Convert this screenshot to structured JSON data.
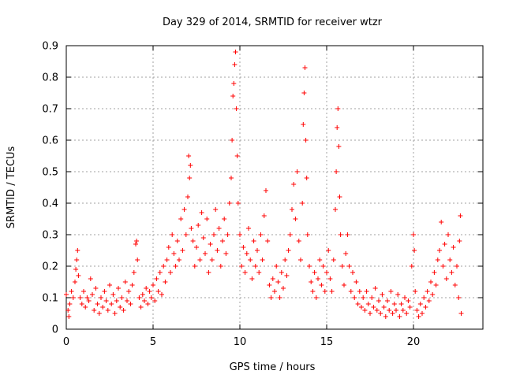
{
  "chart_data": {
    "type": "scatter",
    "title": "Day 329 of 2014, SRMTID for receiver wtzr",
    "xlabel": "GPS time / hours",
    "ylabel": "SRMTID / TECUs",
    "xlim": [
      0,
      24
    ],
    "ylim": [
      0,
      0.9
    ],
    "xticks": [
      "0",
      "5",
      "10",
      "15",
      "20"
    ],
    "yticks": [
      "0",
      "0.1",
      "0.2",
      "0.3",
      "0.4",
      "0.5",
      "0.6",
      "0.7",
      "0.8",
      "0.9"
    ],
    "grid": true,
    "marker": "+",
    "series": [
      {
        "name": "SRMTID",
        "color": "#ff0000",
        "points": [
          [
            0.0,
            0.11
          ],
          [
            0.1,
            0.06
          ],
          [
            0.15,
            0.04
          ],
          [
            0.2,
            0.08
          ],
          [
            0.3,
            0.12
          ],
          [
            0.4,
            0.1
          ],
          [
            0.5,
            0.15
          ],
          [
            0.55,
            0.19
          ],
          [
            0.6,
            0.22
          ],
          [
            0.65,
            0.25
          ],
          [
            0.7,
            0.17
          ],
          [
            0.8,
            0.1
          ],
          [
            0.9,
            0.08
          ],
          [
            1.0,
            0.12
          ],
          [
            1.1,
            0.07
          ],
          [
            1.2,
            0.1
          ],
          [
            1.3,
            0.09
          ],
          [
            1.4,
            0.16
          ],
          [
            1.5,
            0.11
          ],
          [
            1.6,
            0.06
          ],
          [
            1.7,
            0.13
          ],
          [
            1.8,
            0.08
          ],
          [
            1.9,
            0.05
          ],
          [
            2.0,
            0.1
          ],
          [
            2.1,
            0.07
          ],
          [
            2.2,
            0.12
          ],
          [
            2.3,
            0.09
          ],
          [
            2.4,
            0.06
          ],
          [
            2.5,
            0.14
          ],
          [
            2.6,
            0.08
          ],
          [
            2.7,
            0.11
          ],
          [
            2.8,
            0.05
          ],
          [
            2.9,
            0.09
          ],
          [
            3.0,
            0.13
          ],
          [
            3.1,
            0.07
          ],
          [
            3.2,
            0.1
          ],
          [
            3.3,
            0.06
          ],
          [
            3.4,
            0.15
          ],
          [
            3.5,
            0.09
          ],
          [
            3.6,
            0.12
          ],
          [
            3.7,
            0.08
          ],
          [
            3.8,
            0.14
          ],
          [
            3.9,
            0.18
          ],
          [
            4.0,
            0.27
          ],
          [
            4.05,
            0.28
          ],
          [
            4.1,
            0.22
          ],
          [
            4.2,
            0.1
          ],
          [
            4.3,
            0.07
          ],
          [
            4.4,
            0.11
          ],
          [
            4.5,
            0.09
          ],
          [
            4.6,
            0.13
          ],
          [
            4.7,
            0.08
          ],
          [
            4.8,
            0.12
          ],
          [
            4.9,
            0.1
          ],
          [
            5.0,
            0.14
          ],
          [
            5.1,
            0.09
          ],
          [
            5.2,
            0.16
          ],
          [
            5.3,
            0.12
          ],
          [
            5.4,
            0.18
          ],
          [
            5.5,
            0.11
          ],
          [
            5.6,
            0.2
          ],
          [
            5.7,
            0.15
          ],
          [
            5.8,
            0.22
          ],
          [
            5.9,
            0.26
          ],
          [
            6.0,
            0.18
          ],
          [
            6.1,
            0.3
          ],
          [
            6.2,
            0.24
          ],
          [
            6.3,
            0.2
          ],
          [
            6.4,
            0.28
          ],
          [
            6.5,
            0.22
          ],
          [
            6.6,
            0.35
          ],
          [
            6.7,
            0.25
          ],
          [
            6.8,
            0.38
          ],
          [
            6.9,
            0.3
          ],
          [
            7.0,
            0.42
          ],
          [
            7.05,
            0.55
          ],
          [
            7.1,
            0.48
          ],
          [
            7.15,
            0.52
          ],
          [
            7.2,
            0.32
          ],
          [
            7.3,
            0.28
          ],
          [
            7.4,
            0.2
          ],
          [
            7.5,
            0.26
          ],
          [
            7.6,
            0.33
          ],
          [
            7.7,
            0.22
          ],
          [
            7.8,
            0.37
          ],
          [
            7.9,
            0.29
          ],
          [
            8.0,
            0.24
          ],
          [
            8.1,
            0.35
          ],
          [
            8.2,
            0.18
          ],
          [
            8.3,
            0.27
          ],
          [
            8.4,
            0.22
          ],
          [
            8.5,
            0.3
          ],
          [
            8.6,
            0.38
          ],
          [
            8.7,
            0.25
          ],
          [
            8.8,
            0.32
          ],
          [
            8.9,
            0.2
          ],
          [
            9.0,
            0.28
          ],
          [
            9.1,
            0.35
          ],
          [
            9.2,
            0.24
          ],
          [
            9.3,
            0.3
          ],
          [
            9.4,
            0.4
          ],
          [
            9.5,
            0.48
          ],
          [
            9.55,
            0.6
          ],
          [
            9.6,
            0.74
          ],
          [
            9.65,
            0.78
          ],
          [
            9.7,
            0.84
          ],
          [
            9.75,
            0.88
          ],
          [
            9.8,
            0.7
          ],
          [
            9.85,
            0.55
          ],
          [
            9.9,
            0.4
          ],
          [
            10.0,
            0.3
          ],
          [
            10.1,
            0.2
          ],
          [
            10.2,
            0.26
          ],
          [
            10.3,
            0.18
          ],
          [
            10.4,
            0.24
          ],
          [
            10.5,
            0.32
          ],
          [
            10.6,
            0.22
          ],
          [
            10.7,
            0.16
          ],
          [
            10.8,
            0.28
          ],
          [
            10.9,
            0.2
          ],
          [
            11.0,
            0.25
          ],
          [
            11.1,
            0.18
          ],
          [
            11.2,
            0.3
          ],
          [
            11.3,
            0.22
          ],
          [
            11.4,
            0.36
          ],
          [
            11.5,
            0.44
          ],
          [
            11.6,
            0.28
          ],
          [
            11.7,
            0.14
          ],
          [
            11.8,
            0.1
          ],
          [
            11.9,
            0.16
          ],
          [
            12.0,
            0.12
          ],
          [
            12.1,
            0.2
          ],
          [
            12.2,
            0.15
          ],
          [
            12.3,
            0.1
          ],
          [
            12.4,
            0.18
          ],
          [
            12.5,
            0.13
          ],
          [
            12.6,
            0.22
          ],
          [
            12.7,
            0.17
          ],
          [
            12.8,
            0.25
          ],
          [
            12.9,
            0.3
          ],
          [
            13.0,
            0.38
          ],
          [
            13.1,
            0.46
          ],
          [
            13.2,
            0.35
          ],
          [
            13.3,
            0.5
          ],
          [
            13.4,
            0.28
          ],
          [
            13.5,
            0.22
          ],
          [
            13.6,
            0.4
          ],
          [
            13.65,
            0.65
          ],
          [
            13.7,
            0.75
          ],
          [
            13.75,
            0.83
          ],
          [
            13.8,
            0.6
          ],
          [
            13.85,
            0.48
          ],
          [
            13.9,
            0.3
          ],
          [
            14.0,
            0.2
          ],
          [
            14.1,
            0.15
          ],
          [
            14.2,
            0.12
          ],
          [
            14.3,
            0.18
          ],
          [
            14.4,
            0.1
          ],
          [
            14.5,
            0.16
          ],
          [
            14.6,
            0.22
          ],
          [
            14.7,
            0.14
          ],
          [
            14.8,
            0.2
          ],
          [
            14.9,
            0.12
          ],
          [
            15.0,
            0.18
          ],
          [
            15.1,
            0.25
          ],
          [
            15.2,
            0.16
          ],
          [
            15.3,
            0.12
          ],
          [
            15.4,
            0.22
          ],
          [
            15.5,
            0.38
          ],
          [
            15.55,
            0.5
          ],
          [
            15.6,
            0.64
          ],
          [
            15.65,
            0.7
          ],
          [
            15.7,
            0.58
          ],
          [
            15.75,
            0.42
          ],
          [
            15.8,
            0.3
          ],
          [
            15.9,
            0.2
          ],
          [
            16.0,
            0.14
          ],
          [
            16.1,
            0.24
          ],
          [
            16.2,
            0.3
          ],
          [
            16.3,
            0.2
          ],
          [
            16.4,
            0.12
          ],
          [
            16.5,
            0.18
          ],
          [
            16.6,
            0.1
          ],
          [
            16.7,
            0.15
          ],
          [
            16.8,
            0.08
          ],
          [
            16.9,
            0.12
          ],
          [
            17.0,
            0.07
          ],
          [
            17.1,
            0.1
          ],
          [
            17.2,
            0.06
          ],
          [
            17.3,
            0.12
          ],
          [
            17.4,
            0.08
          ],
          [
            17.5,
            0.05
          ],
          [
            17.6,
            0.1
          ],
          [
            17.7,
            0.07
          ],
          [
            17.8,
            0.13
          ],
          [
            17.9,
            0.06
          ],
          [
            18.0,
            0.09
          ],
          [
            18.1,
            0.05
          ],
          [
            18.2,
            0.11
          ],
          [
            18.3,
            0.07
          ],
          [
            18.4,
            0.04
          ],
          [
            18.5,
            0.09
          ],
          [
            18.6,
            0.06
          ],
          [
            18.7,
            0.12
          ],
          [
            18.8,
            0.05
          ],
          [
            18.9,
            0.08
          ],
          [
            19.0,
            0.06
          ],
          [
            19.1,
            0.11
          ],
          [
            19.2,
            0.04
          ],
          [
            19.3,
            0.08
          ],
          [
            19.4,
            0.06
          ],
          [
            19.5,
            0.1
          ],
          [
            19.6,
            0.05
          ],
          [
            19.7,
            0.09
          ],
          [
            19.8,
            0.07
          ],
          [
            19.9,
            0.2
          ],
          [
            20.0,
            0.3
          ],
          [
            20.05,
            0.25
          ],
          [
            20.1,
            0.12
          ],
          [
            20.2,
            0.06
          ],
          [
            20.3,
            0.04
          ],
          [
            20.4,
            0.08
          ],
          [
            20.5,
            0.05
          ],
          [
            20.6,
            0.1
          ],
          [
            20.7,
            0.07
          ],
          [
            20.8,
            0.12
          ],
          [
            20.9,
            0.09
          ],
          [
            21.0,
            0.15
          ],
          [
            21.1,
            0.11
          ],
          [
            21.2,
            0.18
          ],
          [
            21.3,
            0.14
          ],
          [
            21.4,
            0.22
          ],
          [
            21.5,
            0.25
          ],
          [
            21.6,
            0.34
          ],
          [
            21.7,
            0.2
          ],
          [
            21.8,
            0.27
          ],
          [
            21.9,
            0.16
          ],
          [
            22.0,
            0.3
          ],
          [
            22.1,
            0.22
          ],
          [
            22.2,
            0.18
          ],
          [
            22.3,
            0.26
          ],
          [
            22.4,
            0.14
          ],
          [
            22.5,
            0.2
          ],
          [
            22.6,
            0.1
          ],
          [
            22.65,
            0.28
          ],
          [
            22.7,
            0.36
          ],
          [
            22.75,
            0.05
          ]
        ]
      }
    ]
  }
}
